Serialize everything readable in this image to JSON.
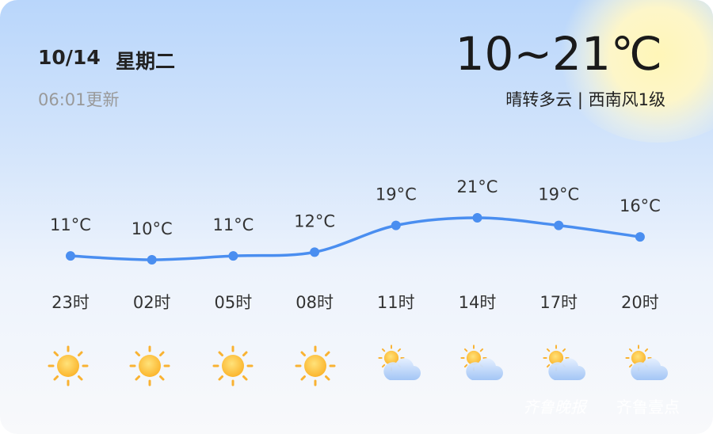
{
  "header": {
    "date": "10/14",
    "weekday": "星期二",
    "updated": "06:01更新",
    "temp_range": "10~21℃",
    "description": "晴转多云 | 西南风1级"
  },
  "chart_data": {
    "type": "line",
    "categories": [
      "23时",
      "02时",
      "05时",
      "08时",
      "11时",
      "14时",
      "17时",
      "20时"
    ],
    "series": [
      {
        "values": [
          11,
          10,
          11,
          12,
          19,
          21,
          19,
          16
        ],
        "value_labels": [
          "11°C",
          "10°C",
          "11°C",
          "12°C",
          "19°C",
          "21°C",
          "19°C",
          "16°C"
        ],
        "color": "#4a8ef0"
      }
    ]
  },
  "watermark": [
    "齐鲁晚报",
    "齐鲁壹点"
  ]
}
